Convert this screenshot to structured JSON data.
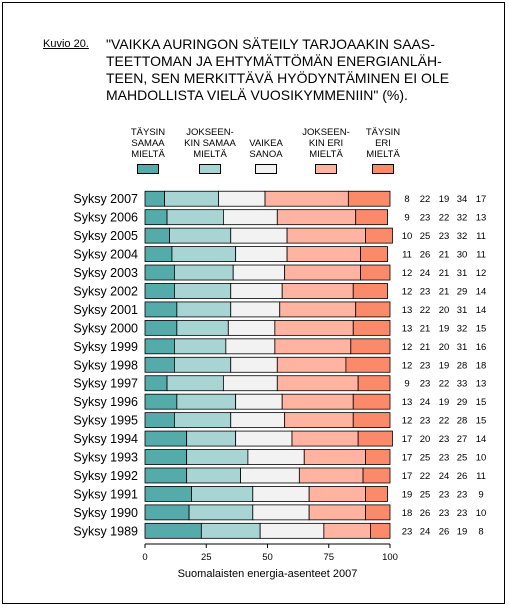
{
  "figure_label": "Kuvio 20.",
  "title": "\"VAIKKA AURINGON SÄTEILY TARJOAAKIN SAASTEETTOMAN JA EHTYMÄTTÖMÄN ENERGIANLÄHTEEN, SEN MERKITTÄVÄ HYÖDYNTÄMINEN EI OLE MAHDOLLISTA VIELÄ VUOSIKYMMENIIN\" (%).",
  "title_lines": [
    "\"VAIKKA AURINGON SÄTEILY TARJOAAKIN SAAS-",
    "TEETTOMAN JA EHTYMÄTTÖMÄN ENERGIANLÄH-",
    "TEEN, SEN MERKITTÄVÄ HYÖDYNTÄMINEN EI OLE",
    "MAHDOLLISTA VIELÄ VUOSIKYMMENIIN\" (%)."
  ],
  "footer": "Suomalaisten energia-asenteet 2007",
  "colors": {
    "taysin_samaa": "#55aaaa",
    "jokseenkin_samaa": "#a8d4d4",
    "vaikea_sanoa": "#f2f2f2",
    "jokseenkin_eri": "#ffb3a0",
    "taysin_eri": "#fa8a6a"
  },
  "legend": [
    {
      "lines": [
        "TÄYSIN",
        "SAMAA",
        "MIELTÄ"
      ],
      "color": "#55aaaa"
    },
    {
      "lines": [
        "JOKSEEN-",
        "KIN SAMAA",
        "MIELTÄ"
      ],
      "color": "#a8d4d4"
    },
    {
      "lines": [
        "VAIKEA",
        "SANOA"
      ],
      "color": "#f2f2f2"
    },
    {
      "lines": [
        "JOKSEEN-",
        "KIN ERI",
        "MIELTÄ"
      ],
      "color": "#ffb3a0"
    },
    {
      "lines": [
        "TÄYSIN",
        "ERI",
        "MIELTÄ"
      ],
      "color": "#fa8a6a"
    }
  ],
  "chart_data": {
    "type": "bar",
    "orientation": "horizontal",
    "stacked": true,
    "xlim": [
      0,
      100
    ],
    "xticks": [
      0,
      25,
      50,
      75,
      100
    ],
    "categories": [
      "Syksy 2007",
      "Syksy 2006",
      "Syksy 2005",
      "Syksy 2004",
      "Syksy 2003",
      "Syksy 2002",
      "Syksy 2001",
      "Syksy 2000",
      "Syksy 1999",
      "Syksy 1998",
      "Syksy 1997",
      "Syksy 1996",
      "Syksy 1995",
      "Syksy 1994",
      "Syksy 1993",
      "Syksy 1992",
      "Syksy 1991",
      "Syksy 1990",
      "Syksy 1989"
    ],
    "series": [
      {
        "name": "TÄYSIN SAMAA MIELTÄ",
        "values": [
          8,
          9,
          10,
          11,
          12,
          12,
          13,
          13,
          12,
          12,
          9,
          13,
          12,
          17,
          17,
          17,
          19,
          18,
          23
        ]
      },
      {
        "name": "JOKSEENKIN SAMAA MIELTÄ",
        "values": [
          22,
          23,
          25,
          26,
          24,
          23,
          22,
          21,
          21,
          23,
          23,
          24,
          23,
          20,
          25,
          22,
          25,
          26,
          24
        ]
      },
      {
        "name": "VAIKEA SANOA",
        "values": [
          19,
          22,
          23,
          21,
          21,
          21,
          20,
          19,
          20,
          19,
          22,
          19,
          22,
          23,
          23,
          24,
          23,
          23,
          26
        ]
      },
      {
        "name": "JOKSEENKIN ERI MIELTÄ",
        "values": [
          34,
          32,
          32,
          30,
          31,
          29,
          31,
          32,
          31,
          28,
          33,
          29,
          28,
          27,
          25,
          26,
          23,
          23,
          19
        ]
      },
      {
        "name": "TÄYSIN ERI MIELTÄ",
        "values": [
          17,
          13,
          11,
          11,
          12,
          14,
          14,
          15,
          16,
          18,
          13,
          15,
          15,
          14,
          10,
          11,
          9,
          10,
          8
        ]
      }
    ],
    "grid": false,
    "legend_position": "top"
  }
}
